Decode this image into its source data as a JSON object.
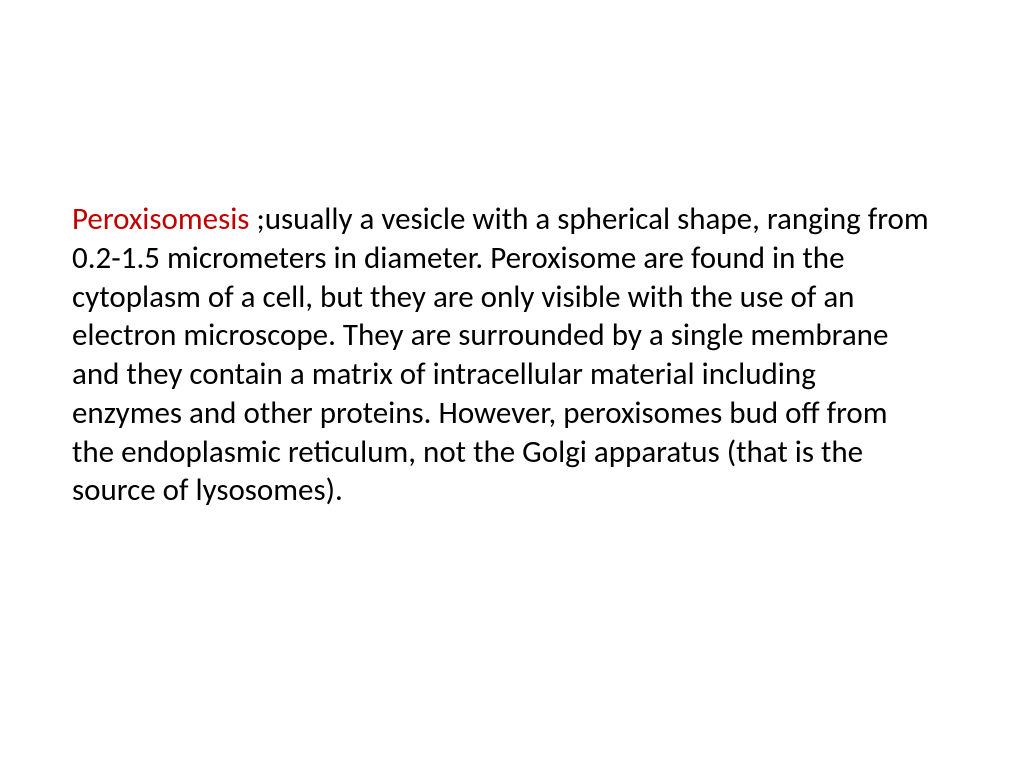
{
  "slide": {
    "background_color": "#ffffff",
    "text_color": "#000000",
    "highlight_color": "#c00000",
    "font_family": "Calibri",
    "font_size_pt": 24,
    "paragraph": {
      "term": "Peroxisomesis",
      "body": " ;usually a vesicle with a spherical shape, ranging from 0.2-1.5 micrometers in diameter. Peroxisome are found in the cytoplasm of a cell, but they are only visible with the use of an electron microscope. They are surrounded by a single membrane and they contain a matrix of intracellular material including enzymes and other proteins. However, peroxisomes bud off from the endoplasmic reticulum, not the Golgi apparatus (that is the source of lysosomes)."
    }
  }
}
